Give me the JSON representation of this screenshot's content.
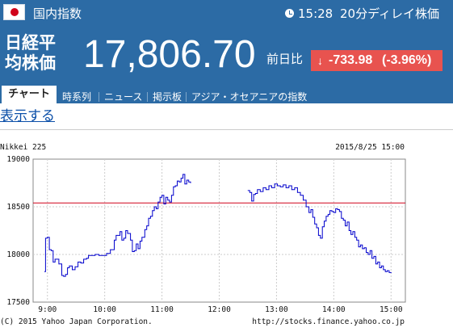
{
  "header": {
    "region_label": "国内指数",
    "time": "15:28",
    "delay_note": "20分ディレイ株価",
    "index_name_line1": "日経平",
    "index_name_line2": "均株価",
    "price": "17,806.70",
    "prev_label": "前日比",
    "change": "-733.98",
    "change_pct": "(-3.96%)",
    "colors": {
      "bar": "#2c6ba5",
      "change_bg": "#e8534f"
    }
  },
  "tabs": [
    {
      "label": "チャート",
      "active": true
    },
    {
      "label": "時系列"
    },
    {
      "label": "ニュース"
    },
    {
      "label": "掲示板"
    },
    {
      "label": "アジア・オセアニアの指数"
    }
  ],
  "show_link": "表示する",
  "chart": {
    "series_label": "Nikkei 225",
    "date_label": "2015/8/25 15:00",
    "copyright": "(C) 2015 Yahoo Japan Corporation.",
    "source_url": "http://stocks.finance.yahoo.co.jp"
  },
  "chart_data": {
    "type": "line",
    "ylim": [
      17500,
      19000
    ],
    "yticks": [
      "19000",
      "18500",
      "18000",
      "17500"
    ],
    "xticks": [
      "9:00",
      "10:00",
      "11:00",
      "12:00",
      "13:00",
      "14:00",
      "15:00"
    ],
    "reference_line": 18540.68,
    "reference_color": "#d0021b",
    "line_color": "#0000cc",
    "series": [
      {
        "segment": "morning",
        "x": [
          "8:57",
          "8:58",
          "9:00",
          "9:02",
          "9:04",
          "9:06",
          "9:08",
          "9:12",
          "9:15",
          "9:17",
          "9:19",
          "9:21",
          "9:23",
          "9:26",
          "9:29",
          "9:32",
          "9:35",
          "9:38",
          "9:41",
          "9:43",
          "9:46",
          "9:50",
          "9:54",
          "9:58",
          "10:02",
          "10:06",
          "10:10",
          "10:12",
          "10:14",
          "10:16",
          "10:18",
          "10:20",
          "10:22",
          "10:24",
          "10:27",
          "10:29",
          "10:31",
          "10:33",
          "10:35",
          "10:37",
          "10:39",
          "10:42",
          "10:44",
          "10:46",
          "10:48",
          "10:50",
          "10:52",
          "10:54",
          "10:56",
          "10:58",
          "11:00",
          "11:02",
          "11:04",
          "11:06",
          "11:08",
          "11:10",
          "11:12",
          "11:14",
          "11:16",
          "11:18",
          "11:20",
          "11:22",
          "11:24",
          "11:26",
          "11:28",
          "11:30"
        ],
        "y": [
          17820,
          18170,
          18180,
          18050,
          18040,
          17920,
          17950,
          17900,
          17780,
          17770,
          17790,
          17860,
          17880,
          17840,
          17870,
          17920,
          17910,
          17950,
          17960,
          17990,
          17990,
          18000,
          17990,
          17990,
          18010,
          18050,
          18150,
          18200,
          18200,
          18240,
          18150,
          18170,
          18250,
          18220,
          18150,
          18030,
          18040,
          18110,
          18060,
          18140,
          18180,
          18260,
          18300,
          18380,
          18400,
          18460,
          18500,
          18480,
          18550,
          18600,
          18620,
          18530,
          18600,
          18570,
          18550,
          18620,
          18710,
          18720,
          18770,
          18760,
          18800,
          18840,
          18740,
          18780,
          18760,
          18750
        ]
      },
      {
        "segment": "afternoon",
        "x": [
          "12:30",
          "12:32",
          "12:34",
          "12:36",
          "12:38",
          "12:40",
          "12:43",
          "12:46",
          "12:49",
          "12:52",
          "12:55",
          "12:58",
          "13:01",
          "13:04",
          "13:07",
          "13:10",
          "13:13",
          "13:16",
          "13:19",
          "13:22",
          "13:25",
          "13:28",
          "13:31",
          "13:34",
          "13:36",
          "13:38",
          "13:40",
          "13:42",
          "13:44",
          "13:46",
          "13:48",
          "13:50",
          "13:52",
          "13:54",
          "13:56",
          "13:58",
          "14:00",
          "14:02",
          "14:04",
          "14:06",
          "14:08",
          "14:10",
          "14:12",
          "14:14",
          "14:16",
          "14:18",
          "14:20",
          "14:22",
          "14:24",
          "14:26",
          "14:28",
          "14:30",
          "14:32",
          "14:34",
          "14:36",
          "14:38",
          "14:40",
          "14:42",
          "14:44",
          "14:46",
          "14:48",
          "14:50",
          "14:52",
          "14:54",
          "14:56",
          "14:58",
          "15:00"
        ],
        "y": [
          18670,
          18650,
          18560,
          18630,
          18640,
          18680,
          18660,
          18700,
          18680,
          18720,
          18700,
          18740,
          18720,
          18710,
          18730,
          18700,
          18720,
          18680,
          18700,
          18650,
          18620,
          18570,
          18500,
          18440,
          18470,
          18390,
          18320,
          18280,
          18200,
          18170,
          18290,
          18350,
          18400,
          18420,
          18460,
          18450,
          18440,
          18480,
          18470,
          18450,
          18380,
          18360,
          18300,
          18340,
          18250,
          18210,
          18240,
          18180,
          18150,
          18080,
          18100,
          18060,
          18070,
          18020,
          18000,
          18040,
          17960,
          17980,
          17900,
          17920,
          17860,
          17880,
          17840,
          17820,
          17830,
          17810,
          17807
        ]
      }
    ]
  }
}
